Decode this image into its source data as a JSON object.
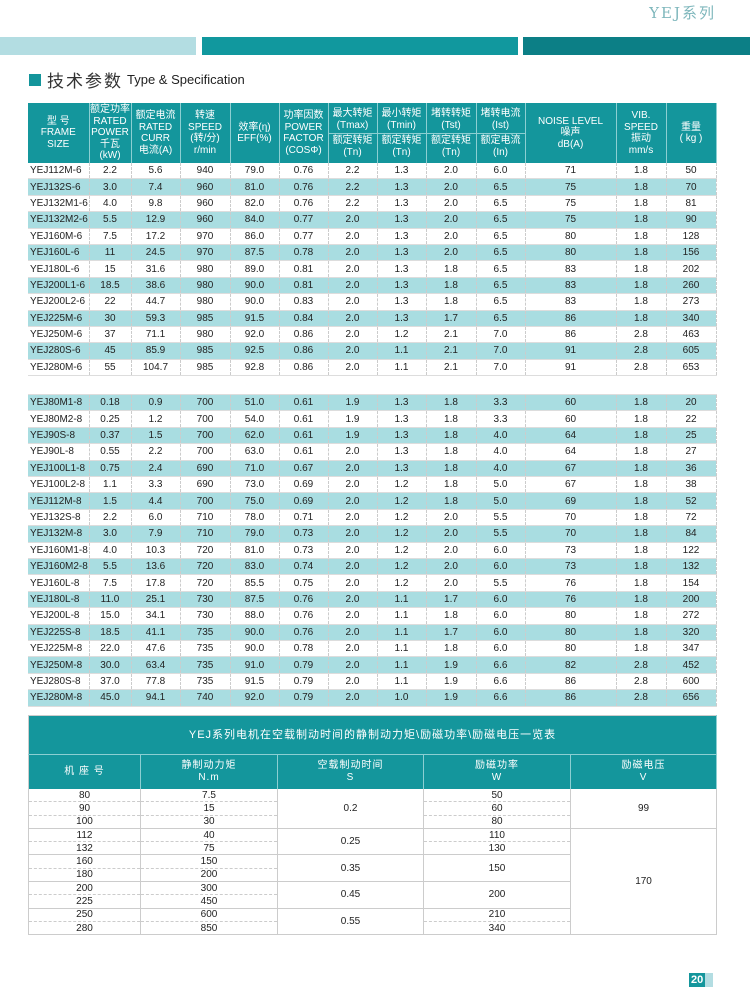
{
  "header": {
    "series": "YEJ系列"
  },
  "section": {
    "title_cn": "技术参数",
    "title_en": "Type & Specification"
  },
  "spec_table": {
    "headers": [
      {
        "lines": [
          "型 号",
          "FRAME",
          "SIZE"
        ]
      },
      {
        "lines": [
          "额定功率",
          "RATED",
          "POWER",
          "千瓦(kW)"
        ]
      },
      {
        "lines": [
          "额定电流",
          "RATED",
          "CURR",
          "电流(A)"
        ]
      },
      {
        "lines": [
          "转速",
          "SPEED",
          "(转/分)",
          "r/min"
        ]
      },
      {
        "lines": [
          "效率(η)",
          "EFF(%)"
        ]
      },
      {
        "lines": [
          "功率因数",
          "POWER",
          "FACTOR",
          "(COSΦ)"
        ]
      },
      {
        "lines": [
          "最大转矩",
          "(Tmax)"
        ],
        "sub": [
          "额定转矩",
          "(Tn)"
        ]
      },
      {
        "lines": [
          "最小转矩",
          "(Tmin)"
        ],
        "sub": [
          "额定转矩",
          "(Tn)"
        ]
      },
      {
        "lines": [
          "堵转转矩",
          "(Tst)"
        ],
        "sub": [
          "额定转矩",
          "(Tn)"
        ]
      },
      {
        "lines": [
          "堵转电流",
          "(Ist)"
        ],
        "sub": [
          "额定电流",
          "(In)"
        ]
      },
      {
        "lines": [
          "NOISE LEVEL",
          "噪声",
          "dB(A)"
        ]
      },
      {
        "lines": [
          "VIB.",
          "SPEED",
          "振动",
          "mm/s"
        ]
      },
      {
        "lines": [
          "重量",
          "( kg )"
        ]
      }
    ],
    "group_6pole": [
      [
        "YEJ112M-6",
        "2.2",
        "5.6",
        "940",
        "79.0",
        "0.76",
        "2.2",
        "1.3",
        "2.0",
        "6.0",
        "71",
        "1.8",
        "50"
      ],
      [
        "YEJ132S-6",
        "3.0",
        "7.4",
        "960",
        "81.0",
        "0.76",
        "2.2",
        "1.3",
        "2.0",
        "6.5",
        "75",
        "1.8",
        "70"
      ],
      [
        "YEJ132M1-6",
        "4.0",
        "9.8",
        "960",
        "82.0",
        "0.76",
        "2.2",
        "1.3",
        "2.0",
        "6.5",
        "75",
        "1.8",
        "81"
      ],
      [
        "YEJ132M2-6",
        "5.5",
        "12.9",
        "960",
        "84.0",
        "0.77",
        "2.0",
        "1.3",
        "2.0",
        "6.5",
        "75",
        "1.8",
        "90"
      ],
      [
        "YEJ160M-6",
        "7.5",
        "17.2",
        "970",
        "86.0",
        "0.77",
        "2.0",
        "1.3",
        "2.0",
        "6.5",
        "80",
        "1.8",
        "128"
      ],
      [
        "YEJ160L-6",
        "11",
        "24.5",
        "970",
        "87.5",
        "0.78",
        "2.0",
        "1.3",
        "2.0",
        "6.5",
        "80",
        "1.8",
        "156"
      ],
      [
        "YEJ180L-6",
        "15",
        "31.6",
        "980",
        "89.0",
        "0.81",
        "2.0",
        "1.3",
        "1.8",
        "6.5",
        "83",
        "1.8",
        "202"
      ],
      [
        "YEJ200L1-6",
        "18.5",
        "38.6",
        "980",
        "90.0",
        "0.81",
        "2.0",
        "1.3",
        "1.8",
        "6.5",
        "83",
        "1.8",
        "260"
      ],
      [
        "YEJ200L2-6",
        "22",
        "44.7",
        "980",
        "90.0",
        "0.83",
        "2.0",
        "1.3",
        "1.8",
        "6.5",
        "83",
        "1.8",
        "273"
      ],
      [
        "YEJ225M-6",
        "30",
        "59.3",
        "985",
        "91.5",
        "0.84",
        "2.0",
        "1.3",
        "1.7",
        "6.5",
        "86",
        "1.8",
        "340"
      ],
      [
        "YEJ250M-6",
        "37",
        "71.1",
        "980",
        "92.0",
        "0.86",
        "2.0",
        "1.2",
        "2.1",
        "7.0",
        "86",
        "2.8",
        "463"
      ],
      [
        "YEJ280S-6",
        "45",
        "85.9",
        "985",
        "92.5",
        "0.86",
        "2.0",
        "1.1",
        "2.1",
        "7.0",
        "91",
        "2.8",
        "605"
      ],
      [
        "YEJ280M-6",
        "55",
        "104.7",
        "985",
        "92.8",
        "0.86",
        "2.0",
        "1.1",
        "2.1",
        "7.0",
        "91",
        "2.8",
        "653"
      ]
    ],
    "group_8pole": [
      [
        "YEJ80M1-8",
        "0.18",
        "0.9",
        "700",
        "51.0",
        "0.61",
        "1.9",
        "1.3",
        "1.8",
        "3.3",
        "60",
        "1.8",
        "20"
      ],
      [
        "YEJ80M2-8",
        "0.25",
        "1.2",
        "700",
        "54.0",
        "0.61",
        "1.9",
        "1.3",
        "1.8",
        "3.3",
        "60",
        "1.8",
        "22"
      ],
      [
        "YEJ90S-8",
        "0.37",
        "1.5",
        "700",
        "62.0",
        "0.61",
        "1.9",
        "1.3",
        "1.8",
        "4.0",
        "64",
        "1.8",
        "25"
      ],
      [
        "YEJ90L-8",
        "0.55",
        "2.2",
        "700",
        "63.0",
        "0.61",
        "2.0",
        "1.3",
        "1.8",
        "4.0",
        "64",
        "1.8",
        "27"
      ],
      [
        "YEJ100L1-8",
        "0.75",
        "2.4",
        "690",
        "71.0",
        "0.67",
        "2.0",
        "1.3",
        "1.8",
        "4.0",
        "67",
        "1.8",
        "36"
      ],
      [
        "YEJ100L2-8",
        "1.1",
        "3.3",
        "690",
        "73.0",
        "0.69",
        "2.0",
        "1.2",
        "1.8",
        "5.0",
        "67",
        "1.8",
        "38"
      ],
      [
        "YEJ112M-8",
        "1.5",
        "4.4",
        "700",
        "75.0",
        "0.69",
        "2.0",
        "1.2",
        "1.8",
        "5.0",
        "69",
        "1.8",
        "52"
      ],
      [
        "YEJ132S-8",
        "2.2",
        "6.0",
        "710",
        "78.0",
        "0.71",
        "2.0",
        "1.2",
        "2.0",
        "5.5",
        "70",
        "1.8",
        "72"
      ],
      [
        "YEJ132M-8",
        "3.0",
        "7.9",
        "710",
        "79.0",
        "0.73",
        "2.0",
        "1.2",
        "2.0",
        "5.5",
        "70",
        "1.8",
        "84"
      ],
      [
        "YEJ160M1-8",
        "4.0",
        "10.3",
        "720",
        "81.0",
        "0.73",
        "2.0",
        "1.2",
        "2.0",
        "6.0",
        "73",
        "1.8",
        "122"
      ],
      [
        "YEJ160M2-8",
        "5.5",
        "13.6",
        "720",
        "83.0",
        "0.74",
        "2.0",
        "1.2",
        "2.0",
        "6.0",
        "73",
        "1.8",
        "132"
      ],
      [
        "YEJ160L-8",
        "7.5",
        "17.8",
        "720",
        "85.5",
        "0.75",
        "2.0",
        "1.2",
        "2.0",
        "5.5",
        "76",
        "1.8",
        "154"
      ],
      [
        "YEJ180L-8",
        "11.0",
        "25.1",
        "730",
        "87.5",
        "0.76",
        "2.0",
        "1.1",
        "1.7",
        "6.0",
        "76",
        "1.8",
        "200"
      ],
      [
        "YEJ200L-8",
        "15.0",
        "34.1",
        "730",
        "88.0",
        "0.76",
        "2.0",
        "1.1",
        "1.8",
        "6.0",
        "80",
        "1.8",
        "272"
      ],
      [
        "YEJ225S-8",
        "18.5",
        "41.1",
        "735",
        "90.0",
        "0.76",
        "2.0",
        "1.1",
        "1.7",
        "6.0",
        "80",
        "1.8",
        "320"
      ],
      [
        "YEJ225M-8",
        "22.0",
        "47.6",
        "735",
        "90.0",
        "0.78",
        "2.0",
        "1.1",
        "1.8",
        "6.0",
        "80",
        "1.8",
        "347"
      ],
      [
        "YEJ250M-8",
        "30.0",
        "63.4",
        "735",
        "91.0",
        "0.79",
        "2.0",
        "1.1",
        "1.9",
        "6.6",
        "82",
        "2.8",
        "452"
      ],
      [
        "YEJ280S-8",
        "37.0",
        "77.8",
        "735",
        "91.5",
        "0.79",
        "2.0",
        "1.1",
        "1.9",
        "6.6",
        "86",
        "2.8",
        "600"
      ],
      [
        "YEJ280M-8",
        "45.0",
        "94.1",
        "740",
        "92.0",
        "0.79",
        "2.0",
        "1.0",
        "1.9",
        "6.6",
        "86",
        "2.8",
        "656"
      ]
    ]
  },
  "brake_table": {
    "title": "YEJ系列电机在空载制动时间的静制动力矩\\励磁功率\\励磁电压一览表",
    "headers": [
      {
        "cn": "机  座 号",
        "unit": ""
      },
      {
        "cn": "静制动力矩",
        "unit": "N.m"
      },
      {
        "cn": "空载制动时间",
        "unit": "S"
      },
      {
        "cn": "励磁功率",
        "unit": "W"
      },
      {
        "cn": "励磁电压",
        "unit": "V"
      }
    ],
    "frames": [
      "80",
      "90",
      "100",
      "112",
      "132",
      "160",
      "180",
      "200",
      "225",
      "250",
      "280"
    ],
    "torque": [
      "7.5",
      "15",
      "30",
      "40",
      "75",
      "150",
      "200",
      "300",
      "450",
      "600",
      "850"
    ],
    "brake_time": [
      {
        "value": "0.2",
        "span": 3
      },
      {
        "value": "0.25",
        "span": 2
      },
      {
        "value": "0.35",
        "span": 2
      },
      {
        "value": "0.45",
        "span": 2
      },
      {
        "value": "0.55",
        "span": 2
      }
    ],
    "power": [
      {
        "value": "50",
        "span": 1
      },
      {
        "value": "60",
        "span": 1
      },
      {
        "value": "80",
        "span": 1
      },
      {
        "value": "110",
        "span": 1
      },
      {
        "value": "130",
        "span": 1
      },
      {
        "value": "150",
        "span": 2
      },
      {
        "value": "200",
        "span": 2
      },
      {
        "value": "210",
        "span": 1
      },
      {
        "value": "340",
        "span": 1
      }
    ],
    "voltage": [
      {
        "value": "99",
        "span": 3
      },
      {
        "value": "170",
        "span": 8
      }
    ]
  },
  "footer": {
    "page_number": "20"
  },
  "colors": {
    "accent": "#14969c",
    "accent_dark": "#0c7f86",
    "row_shade": "#a9dde1"
  }
}
